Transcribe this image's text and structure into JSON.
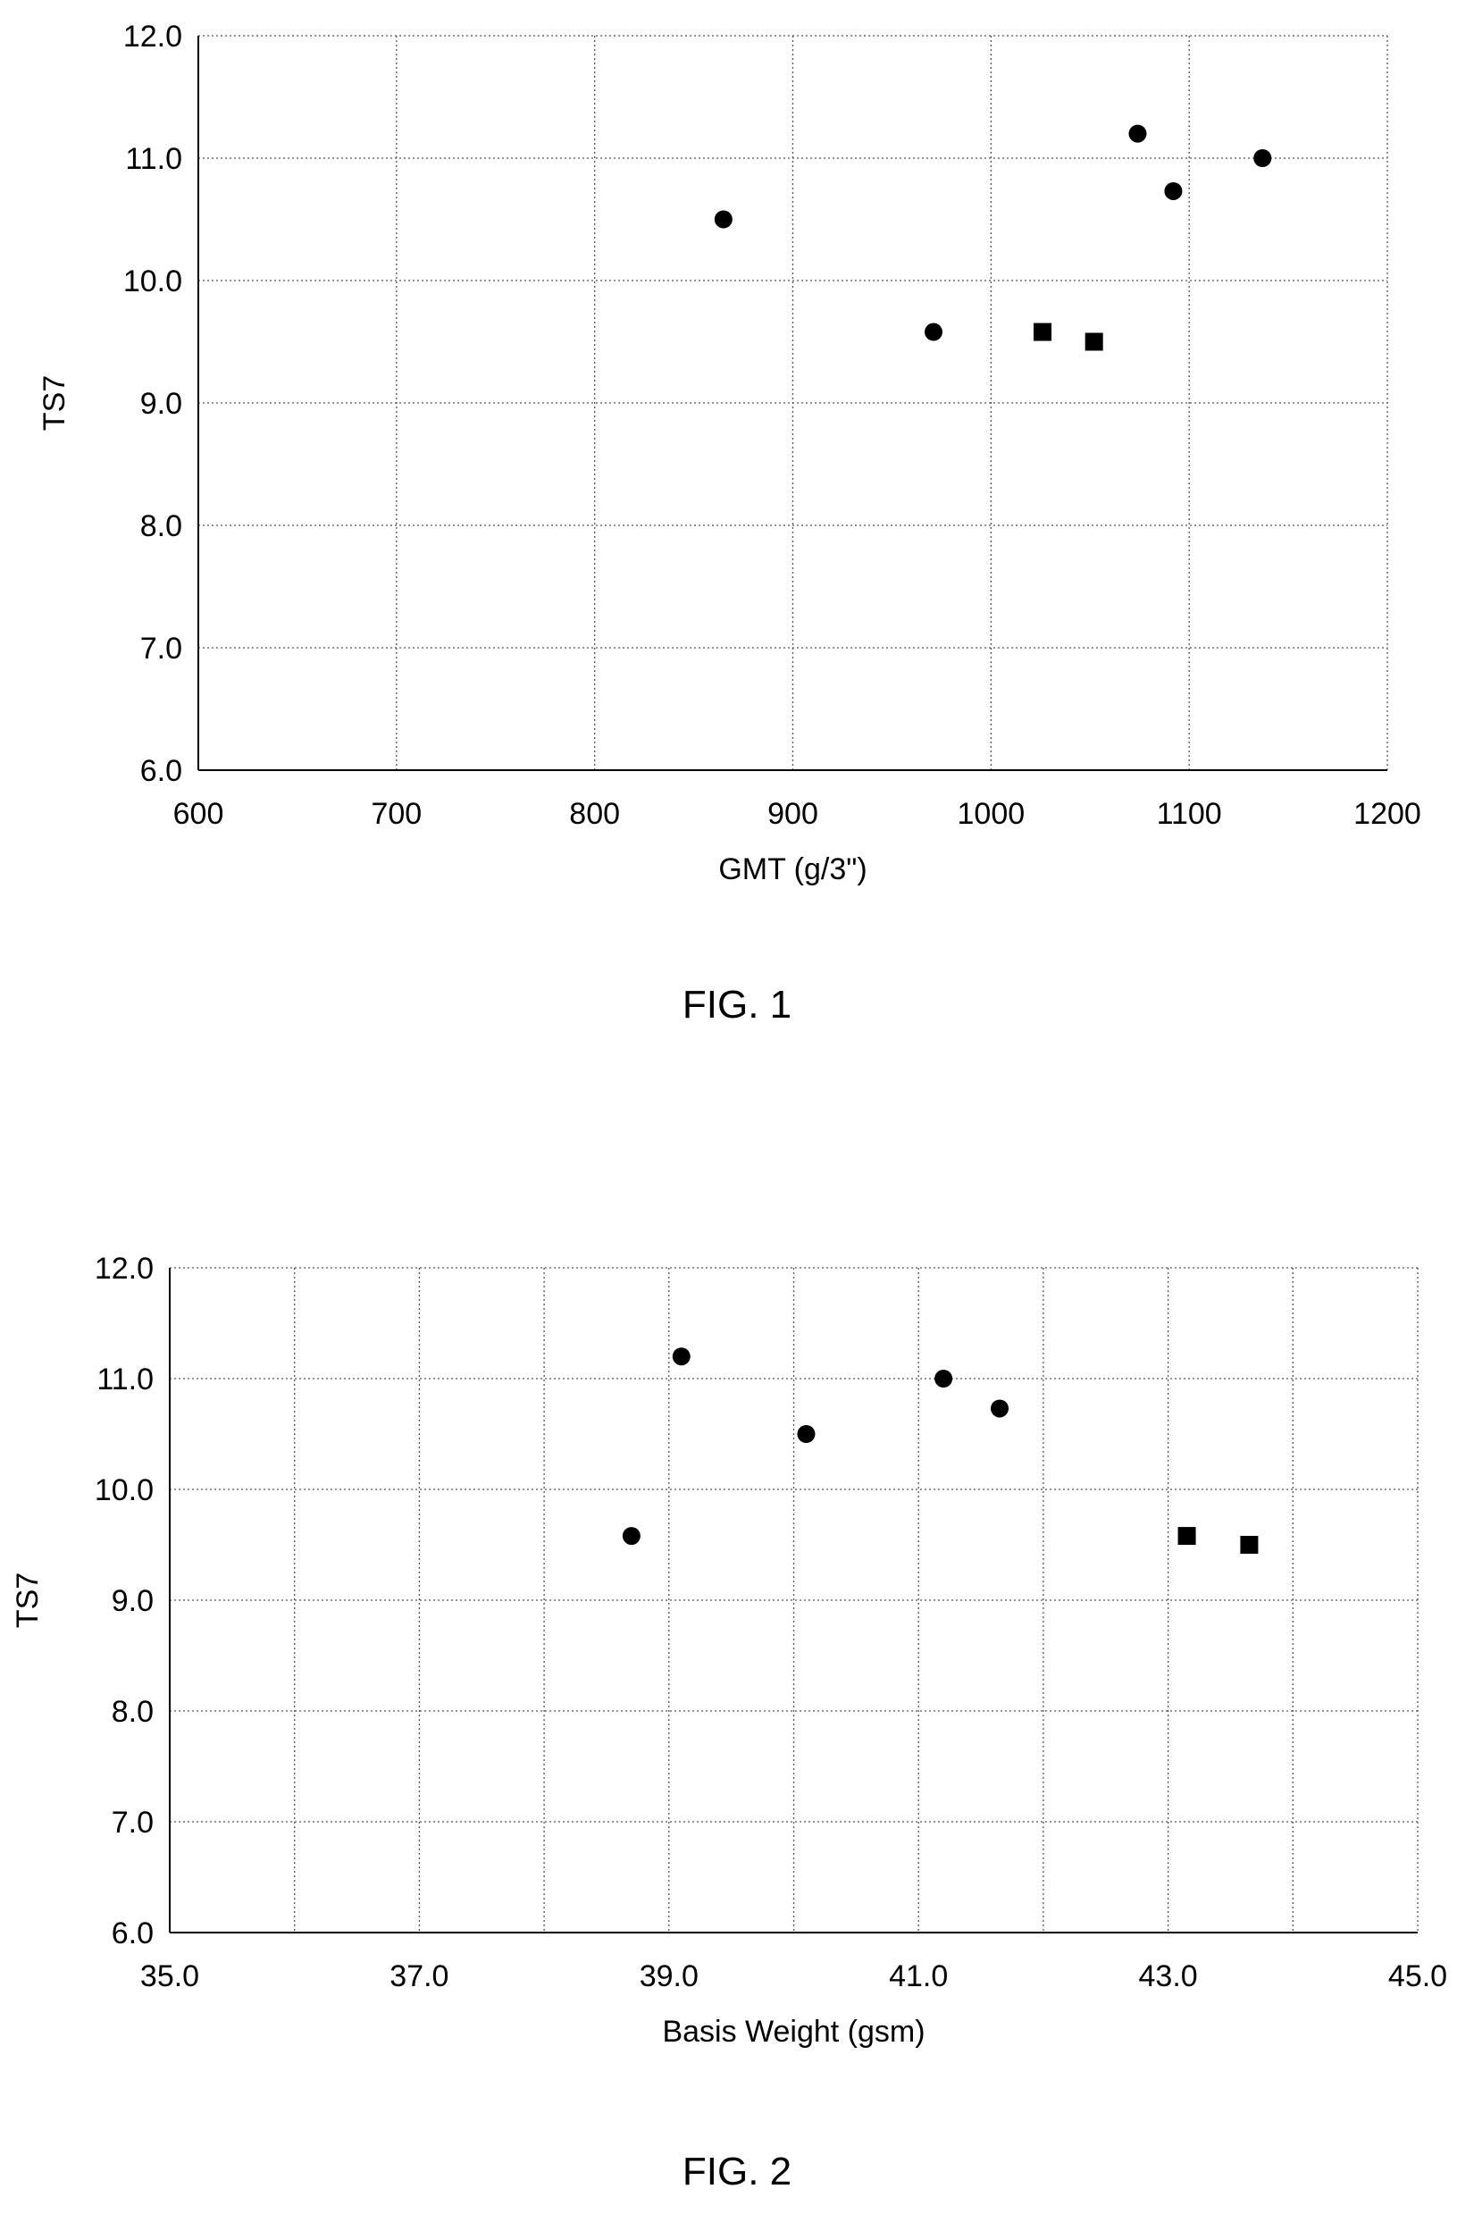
{
  "figures": [
    {
      "caption": "FIG. 1",
      "chart_data": {
        "type": "scatter",
        "title": "",
        "xlabel": "GMT (g/3\")",
        "ylabel": "TS7",
        "xlim": [
          600,
          1200
        ],
        "ylim": [
          6.0,
          12.0
        ],
        "x_ticks": [
          600,
          700,
          800,
          900,
          1000,
          1100,
          1200
        ],
        "x_tick_labels": [
          "600",
          "700",
          "800",
          "900",
          "1000",
          "1100",
          "1200"
        ],
        "y_ticks": [
          6,
          7,
          8,
          9,
          10,
          11,
          12
        ],
        "y_tick_labels": [
          "6.0",
          "7.0",
          "8.0",
          "9.0",
          "10.0",
          "11.0",
          "12.0"
        ],
        "grid": true,
        "grid_style": "dotted",
        "series": [
          {
            "marker": "circle",
            "color": "#000000",
            "points": [
              {
                "x": 865,
                "y": 10.5
              },
              {
                "x": 971,
                "y": 9.58
              },
              {
                "x": 1074,
                "y": 11.2
              },
              {
                "x": 1092,
                "y": 10.73
              },
              {
                "x": 1137,
                "y": 11.0
              }
            ]
          },
          {
            "marker": "square",
            "color": "#000000",
            "points": [
              {
                "x": 1026,
                "y": 9.58
              },
              {
                "x": 1052,
                "y": 9.5
              }
            ]
          }
        ]
      }
    },
    {
      "caption": "FIG. 2",
      "chart_data": {
        "type": "scatter",
        "title": "",
        "xlabel": "Basis Weight (gsm)",
        "ylabel": "TS7",
        "xlim": [
          35.0,
          45.0
        ],
        "ylim": [
          6.0,
          12.0
        ],
        "x_ticks": [
          35,
          37,
          39,
          41,
          43,
          45
        ],
        "x_tick_labels": [
          "35.0",
          "37.0",
          "39.0",
          "41.0",
          "43.0",
          "45.0"
        ],
        "x_minor_gridlines": [
          36,
          38,
          40,
          42,
          44
        ],
        "y_ticks": [
          6,
          7,
          8,
          9,
          10,
          11,
          12
        ],
        "y_tick_labels": [
          "6.0",
          "7.0",
          "8.0",
          "9.0",
          "10.0",
          "11.0",
          "12.0"
        ],
        "grid": true,
        "grid_style": "dotted",
        "series": [
          {
            "marker": "circle",
            "color": "#000000",
            "points": [
              {
                "x": 38.7,
                "y": 9.58
              },
              {
                "x": 39.1,
                "y": 11.2
              },
              {
                "x": 40.1,
                "y": 10.5
              },
              {
                "x": 41.2,
                "y": 11.0
              },
              {
                "x": 41.65,
                "y": 10.73
              }
            ]
          },
          {
            "marker": "square",
            "color": "#000000",
            "points": [
              {
                "x": 43.15,
                "y": 9.58
              },
              {
                "x": 43.65,
                "y": 9.5
              }
            ]
          }
        ]
      }
    }
  ]
}
